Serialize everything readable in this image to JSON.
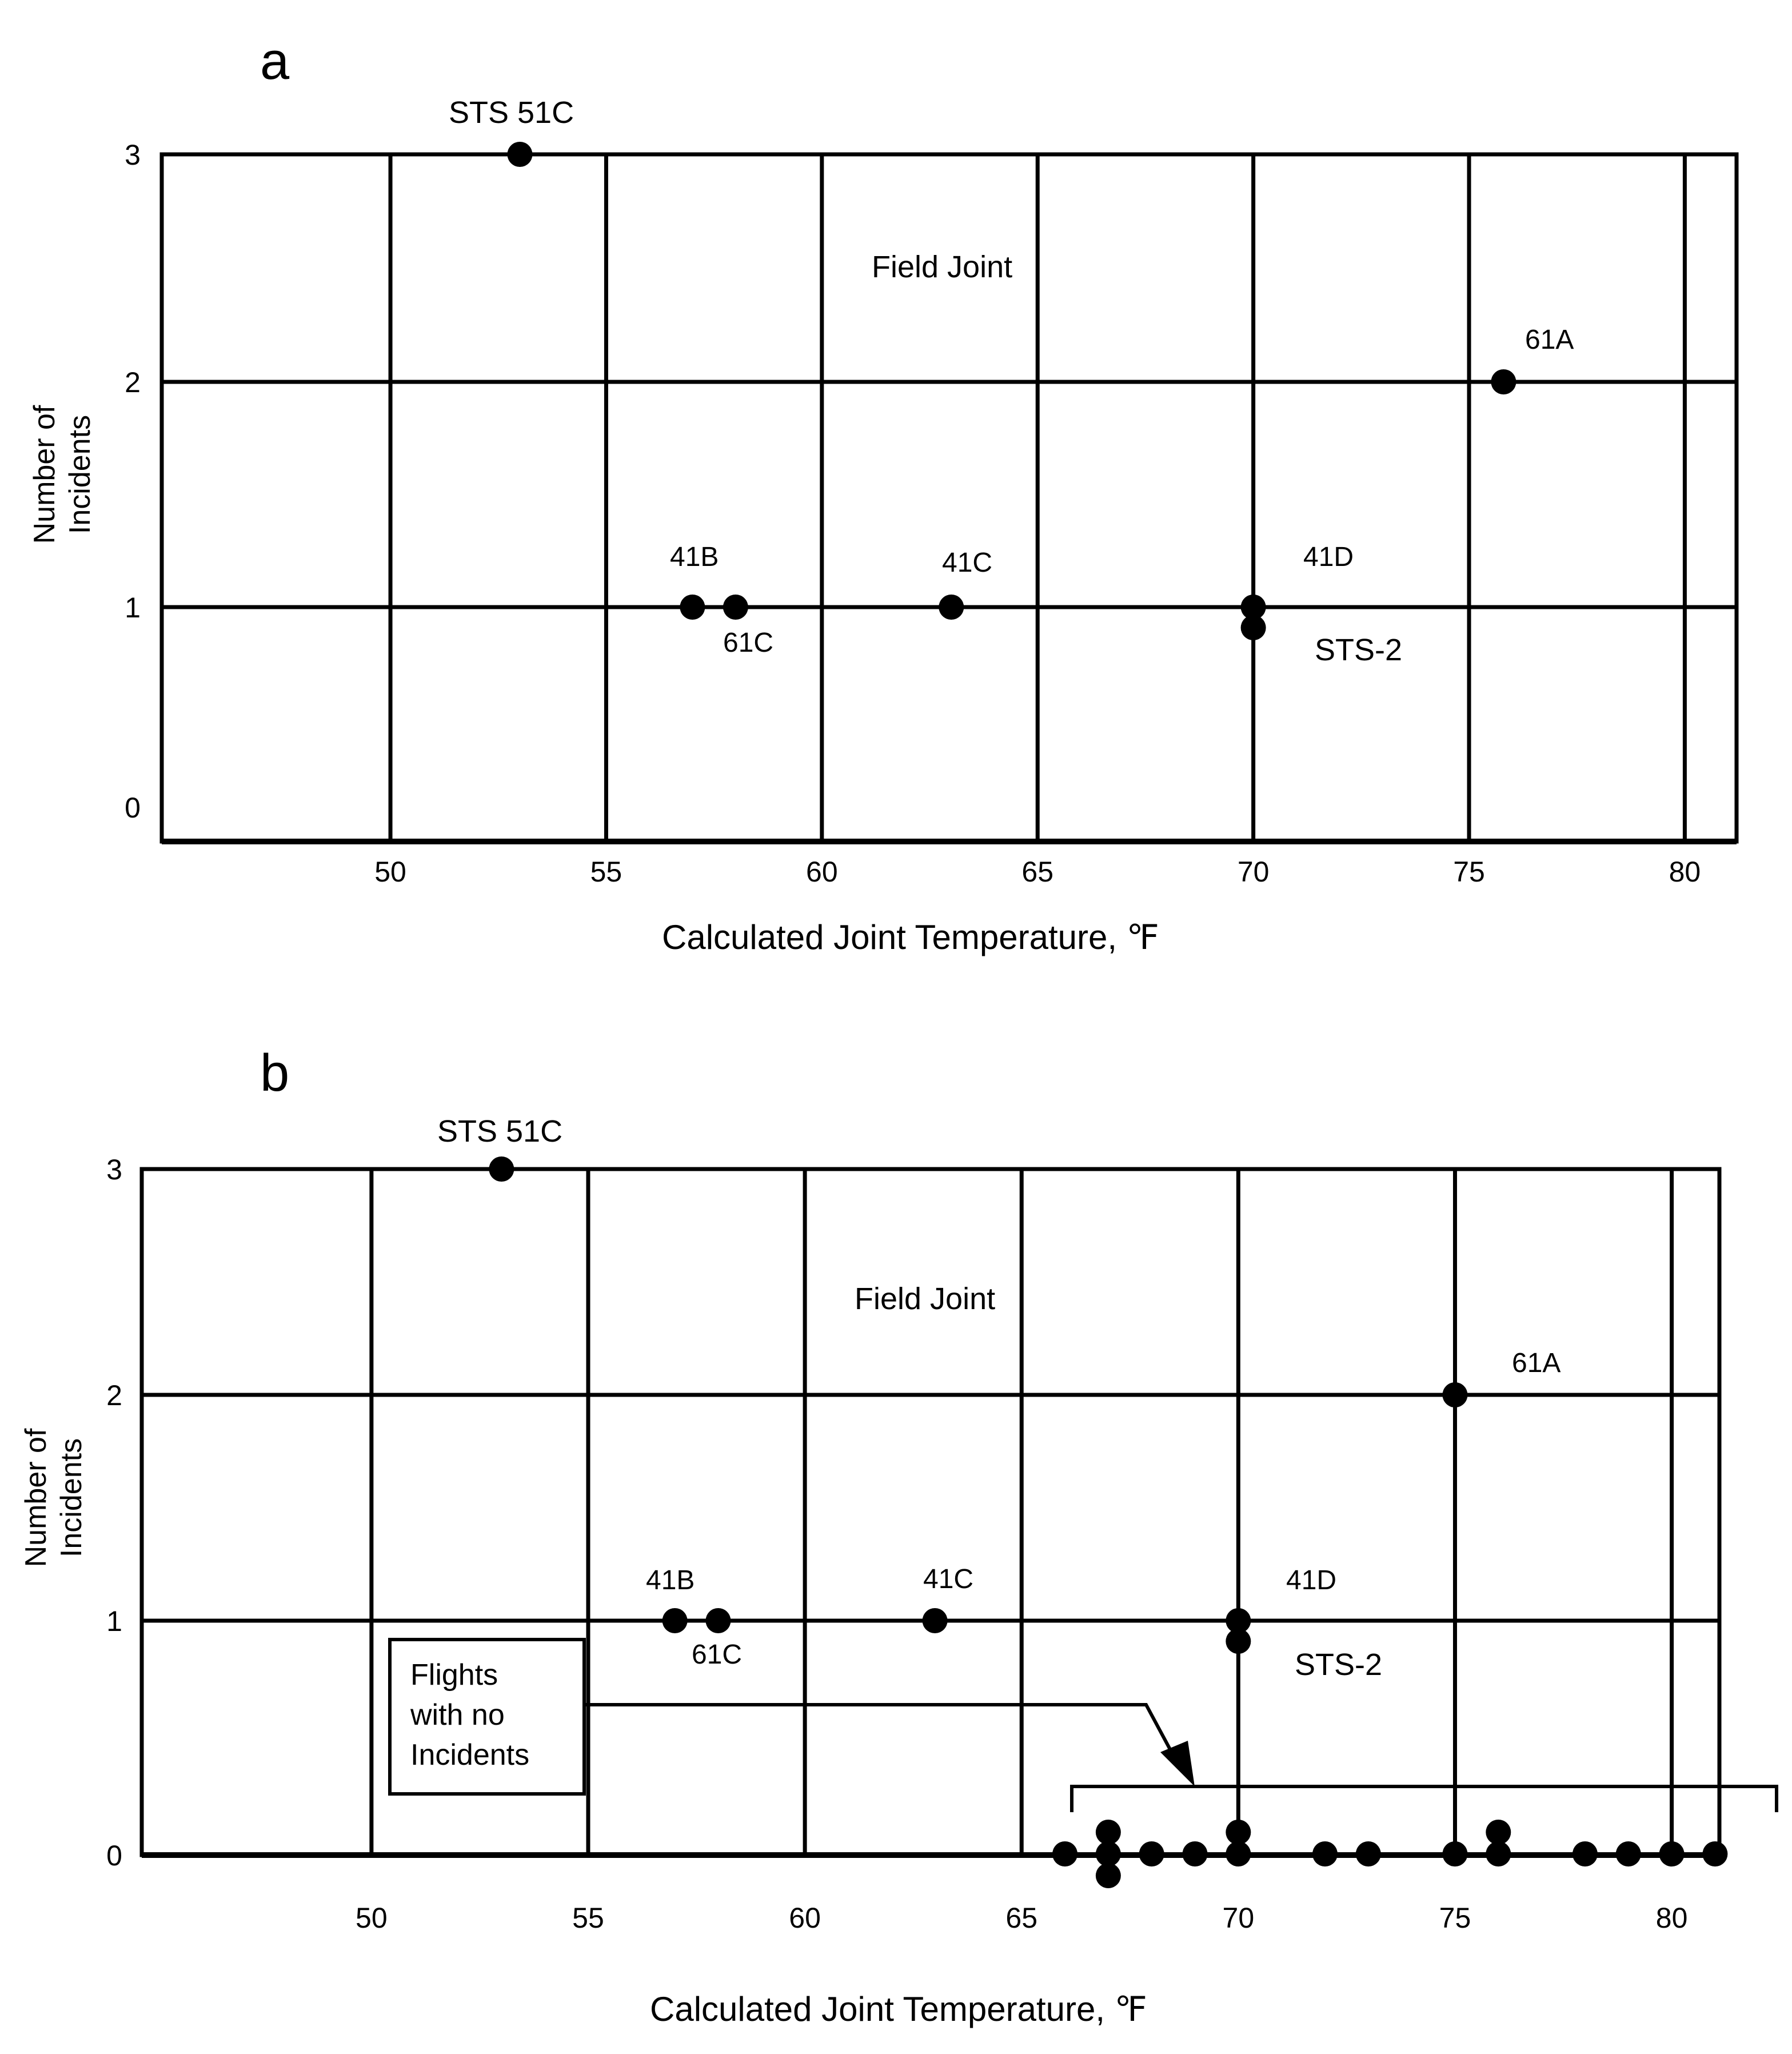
{
  "chart_data": [
    {
      "panel_label": "a",
      "type": "scatter",
      "annotation": "Field Joint",
      "xlabel": "Calculated Joint Temperature,  ℉",
      "ylabel_line1": "Number of",
      "ylabel_line2": "Incidents",
      "xlim": [
        44.7,
        81.2
      ],
      "ylim": [
        -0.1,
        3
      ],
      "x_ticks": [
        50,
        55,
        60,
        65,
        70,
        75,
        80
      ],
      "y_ticks": [
        0,
        1,
        2,
        3
      ],
      "points": [
        {
          "x": 53.0,
          "y": 3,
          "label": "STS 51C"
        },
        {
          "x": 75.8,
          "y": 2,
          "label": "61A"
        },
        {
          "x": 57.0,
          "y": 1,
          "label": "41B"
        },
        {
          "x": 58.0,
          "y": 1,
          "label": "61C"
        },
        {
          "x": 63.0,
          "y": 1,
          "label": "41C"
        },
        {
          "x": 70.0,
          "y": 1,
          "label": "41D"
        },
        {
          "x": 70.0,
          "y": 1,
          "label": "STS-2"
        }
      ]
    },
    {
      "panel_label": "b",
      "type": "scatter",
      "annotation": "Field Joint",
      "callout": [
        "Flights",
        "with no",
        "Incidents"
      ],
      "xlabel": "Calculated Joint Temperature,  ℉",
      "ylabel_line1": "Number of",
      "ylabel_line2": "Incidents",
      "xlim": [
        44.7,
        81.1
      ],
      "ylim": [
        -0.1,
        3
      ],
      "x_ticks": [
        50,
        55,
        60,
        65,
        70,
        75,
        80
      ],
      "y_ticks": [
        0,
        1,
        2,
        3
      ],
      "points": [
        {
          "x": 53.0,
          "y": 3,
          "label": "STS 51C"
        },
        {
          "x": 75.0,
          "y": 2,
          "label": "61A"
        },
        {
          "x": 57.0,
          "y": 1,
          "label": "41B"
        },
        {
          "x": 58.0,
          "y": 1,
          "label": "61C"
        },
        {
          "x": 63.0,
          "y": 1,
          "label": "41C"
        },
        {
          "x": 70.0,
          "y": 1,
          "label": "41D"
        },
        {
          "x": 70.0,
          "y": 1,
          "label": "STS-2"
        },
        {
          "x": 66,
          "y": 0
        },
        {
          "x": 67,
          "y": 0
        },
        {
          "x": 67,
          "y": 0
        },
        {
          "x": 67,
          "y": 0
        },
        {
          "x": 68,
          "y": 0
        },
        {
          "x": 69,
          "y": 0
        },
        {
          "x": 70,
          "y": 0
        },
        {
          "x": 70,
          "y": 0
        },
        {
          "x": 72,
          "y": 0
        },
        {
          "x": 73,
          "y": 0
        },
        {
          "x": 75,
          "y": 0
        },
        {
          "x": 76,
          "y": 0
        },
        {
          "x": 76,
          "y": 0
        },
        {
          "x": 78,
          "y": 0
        },
        {
          "x": 79,
          "y": 0
        },
        {
          "x": 80,
          "y": 0
        },
        {
          "x": 81,
          "y": 0
        }
      ]
    }
  ]
}
